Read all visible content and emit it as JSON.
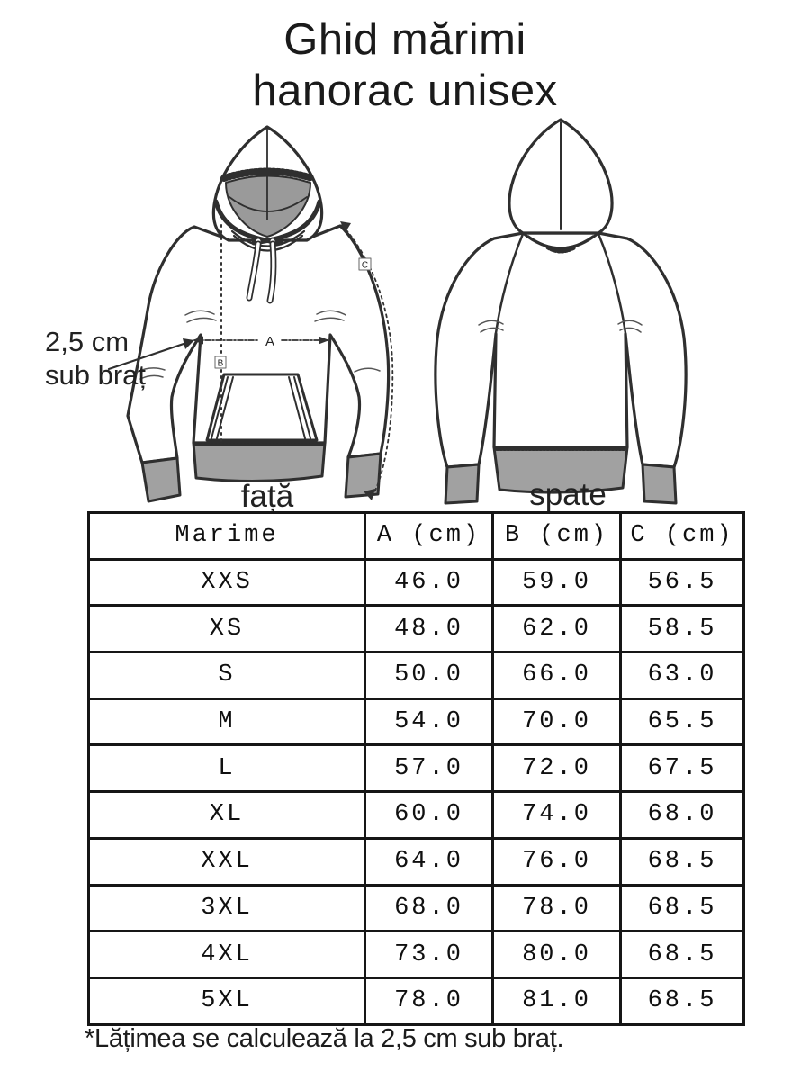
{
  "title": {
    "line1": "Ghid mărimi",
    "line2": "hanorac unisex"
  },
  "diagram": {
    "annotation": {
      "line1": "2,5 cm",
      "line2": "sub braț"
    },
    "front_label": "față",
    "back_label": "spate",
    "measures": {
      "a": "A",
      "b": "B",
      "c": "C"
    }
  },
  "table": {
    "headers": [
      "Marime",
      "A (cm)",
      "B (cm)",
      "C (cm)"
    ],
    "rows": [
      [
        "XXS",
        "46.0",
        "59.0",
        "56.5"
      ],
      [
        "XS",
        "48.0",
        "62.0",
        "58.5"
      ],
      [
        "S",
        "50.0",
        "66.0",
        "63.0"
      ],
      [
        "M",
        "54.0",
        "70.0",
        "65.5"
      ],
      [
        "L",
        "57.0",
        "72.0",
        "67.5"
      ],
      [
        "XL",
        "60.0",
        "74.0",
        "68.0"
      ],
      [
        "XXL",
        "64.0",
        "76.0",
        "68.5"
      ],
      [
        "3XL",
        "68.0",
        "78.0",
        "68.5"
      ],
      [
        "4XL",
        "73.0",
        "80.0",
        "68.5"
      ],
      [
        "5XL",
        "78.0",
        "81.0",
        "68.5"
      ]
    ]
  },
  "footnote": "*Lățimea se calculează la 2,5 cm sub braț.",
  "colors": {
    "ink": "#2f2f2f",
    "fabric_gray": "#a1a1a1",
    "hood_gray": "#9a9a9a",
    "table_border": "#161616"
  }
}
